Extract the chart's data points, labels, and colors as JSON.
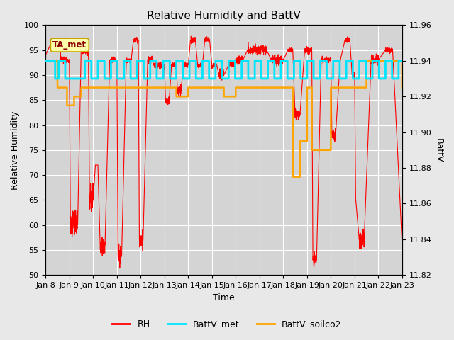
{
  "title": "Relative Humidity and BattV",
  "xlabel": "Time",
  "ylabel_left": "Relative Humidity",
  "ylabel_right": "BattV",
  "ylim_left": [
    50,
    100
  ],
  "ylim_right": [
    11.82,
    11.96
  ],
  "yticks_left": [
    50,
    55,
    60,
    65,
    70,
    75,
    80,
    85,
    90,
    95,
    100
  ],
  "yticks_right": [
    11.82,
    11.84,
    11.86,
    11.88,
    11.9,
    11.92,
    11.94,
    11.96
  ],
  "fig_bg_color": "#e8e8e8",
  "plot_bg_color": "#d4d4d4",
  "grid_color": "#ffffff",
  "rh_color": "#ff0000",
  "battv_met_color": "#00e5ff",
  "battv_soilco2_color": "#ffa500",
  "annotation_text": "TA_met",
  "annotation_bg": "#ffffaa",
  "annotation_border": "#c8a000",
  "annotation_text_color": "#8b0000",
  "legend_items": [
    "RH",
    "BattV_met",
    "BattV_soilco2"
  ],
  "x_tick_labels": [
    "Jan 8",
    "Jan 9",
    "Jan 10",
    "Jan 11",
    "Jan 12",
    "Jan 13",
    "Jan 14",
    "Jan 15",
    "Jan 16",
    "Jan 17",
    "Jan 18",
    "Jan 19",
    "Jan 20",
    "Jan 21",
    "Jan 22",
    "Jan 23"
  ],
  "title_fontsize": 11,
  "axis_label_fontsize": 9,
  "tick_fontsize": 8
}
